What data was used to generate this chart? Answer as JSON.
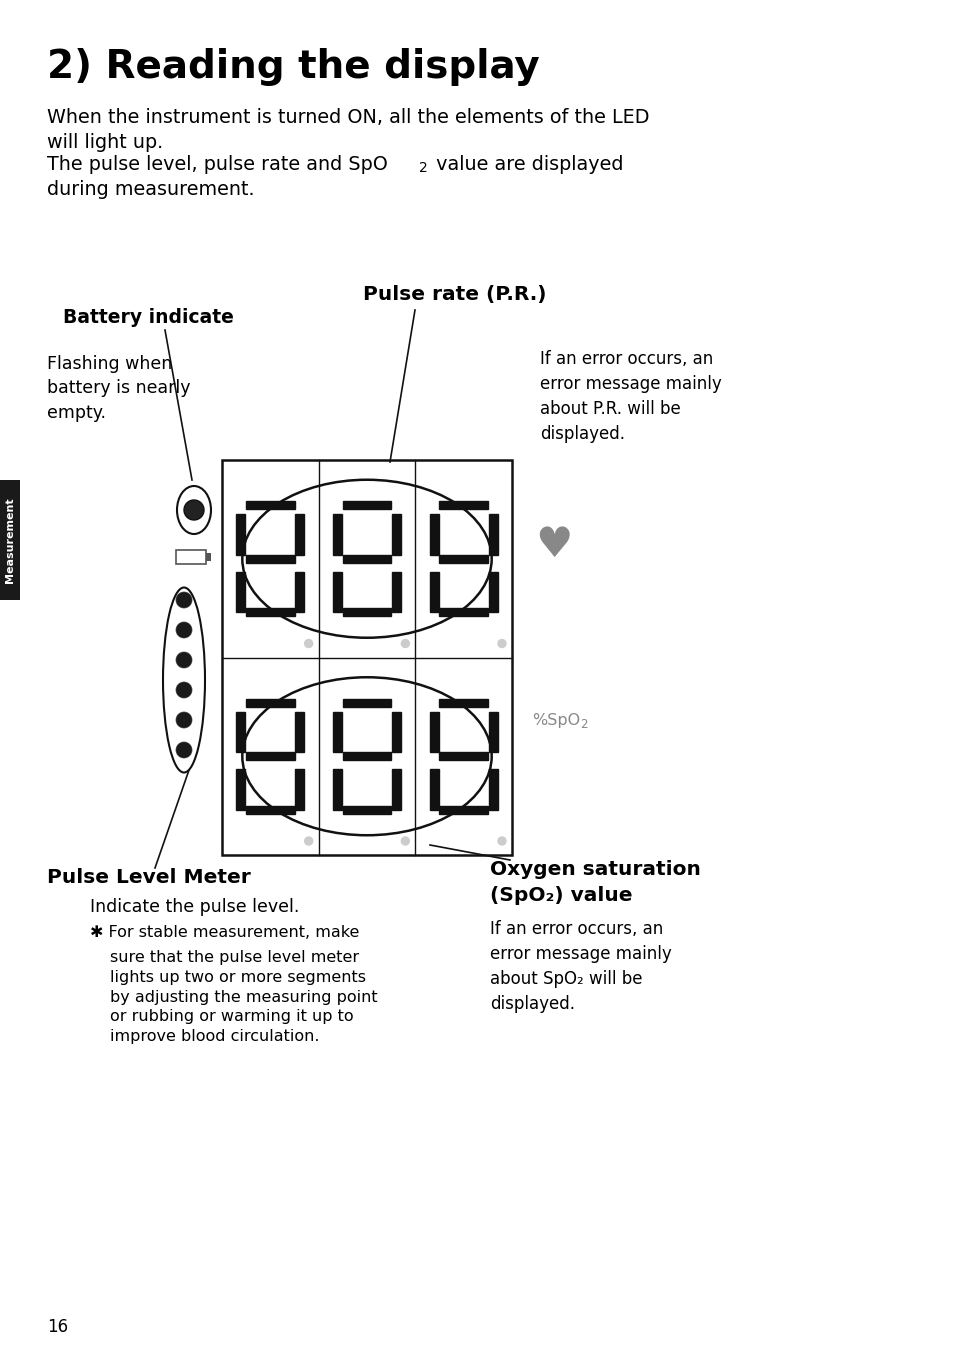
{
  "title": "2) Reading the display",
  "bg_color": "#ffffff",
  "text_color": "#000000",
  "intro_line1": "When the instrument is turned ON, all the elements of the LED",
  "intro_line2": "will light up.",
  "intro_line3_pre": "The pulse level, pulse rate and SpO",
  "intro_line3_sub": "2",
  "intro_line3_post": " value are displayed",
  "intro_line4": "during measurement.",
  "label_pulse_rate": "Pulse rate (P.R.)",
  "label_battery": "Battery indicate",
  "label_pulse_level": "Pulse Level Meter",
  "label_oxygen_line1": "Oxygen saturation",
  "label_oxygen_line2": "(SpO₂) value",
  "text_flashing": "Flashing when\nbattery is nearly\nempty.",
  "text_pr_error": "If an error occurs, an\nerror message mainly\nabout P.R. will be\ndisplayed.",
  "text_spo2_error": "If an error occurs, an\nerror message mainly\nabout SpO₂ will be\ndisplayed.",
  "text_indicate": "Indicate the pulse level.",
  "text_asterisk_line1": "✱ For stable measurement, make",
  "text_asterisk_rest": "sure that the pulse level meter\nlights up two or more segments\nby adjusting the measuring point\nor rubbing or warming it up to\nimprove blood circulation.",
  "label_spo2_unit_pct": "%SpO",
  "label_spo2_unit_sub": "2",
  "page_number": "16",
  "measurement_tab": "Measurement",
  "tab_color": "#1a1a1a",
  "heart_color": "#888888",
  "spo2_label_color": "#888888"
}
